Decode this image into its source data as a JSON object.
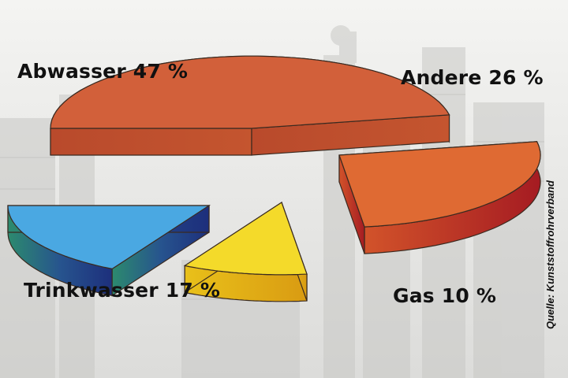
{
  "chart_data": {
    "type": "pie",
    "style": "3d-exploded",
    "title": "",
    "slices": [
      {
        "label": "Abwasser 47 %",
        "name": "Abwasser",
        "value": 47,
        "color": "#d2603a"
      },
      {
        "label": "Andere 26 %",
        "name": "Andere",
        "value": 26,
        "color": "#df6a33"
      },
      {
        "label": "Gas 10 %",
        "name": "Gas",
        "value": 10,
        "color": "#f4da2a"
      },
      {
        "label": "Trinkwasser 17 %",
        "name": "Trinkwasser",
        "value": 17,
        "color": "#4aa8e2"
      }
    ],
    "source_note": "Quelle: Kunststoffrohrverband"
  }
}
